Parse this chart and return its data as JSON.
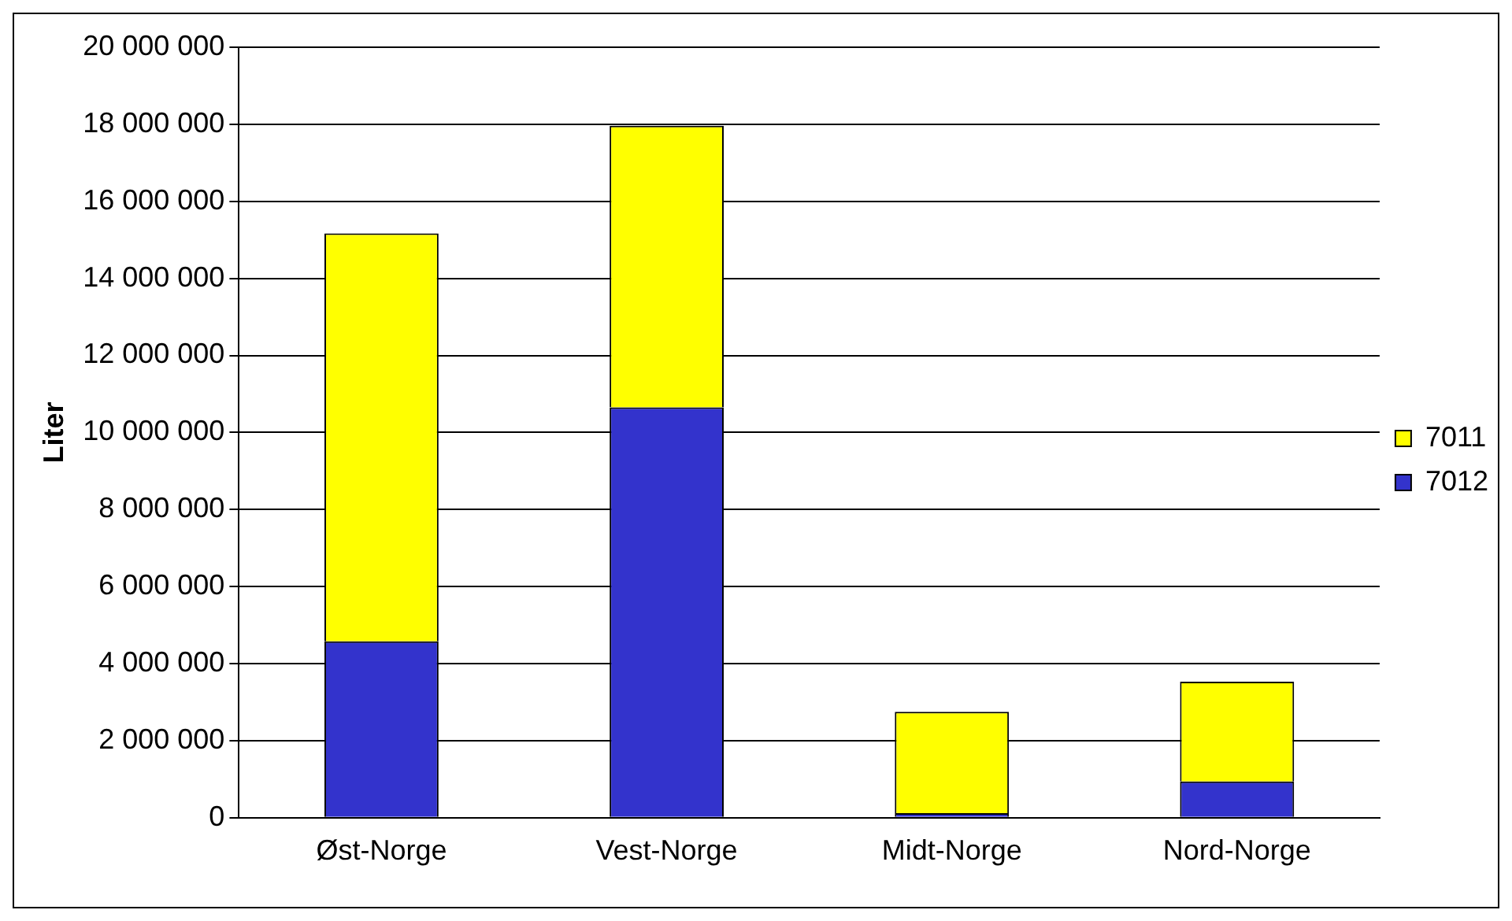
{
  "chart_data": {
    "type": "bar",
    "ylabel": "Liter",
    "categories": [
      "Øst-Norge",
      "Vest-Norge",
      "Midt-Norge",
      "Nord-Norge"
    ],
    "stacked": true,
    "series": [
      {
        "name": "7012",
        "color": "#3333cc",
        "values": [
          4580000,
          10650000,
          120000,
          940000
        ]
      },
      {
        "name": "7011",
        "color": "#ffff00",
        "values": [
          10590000,
          7310000,
          2630000,
          2590000
        ]
      }
    ],
    "ylim": [
      0,
      20000000
    ],
    "yticks": [
      0,
      2000000,
      4000000,
      6000000,
      8000000,
      10000000,
      12000000,
      14000000,
      16000000,
      18000000,
      20000000
    ],
    "grid": "y",
    "legend": "right"
  }
}
